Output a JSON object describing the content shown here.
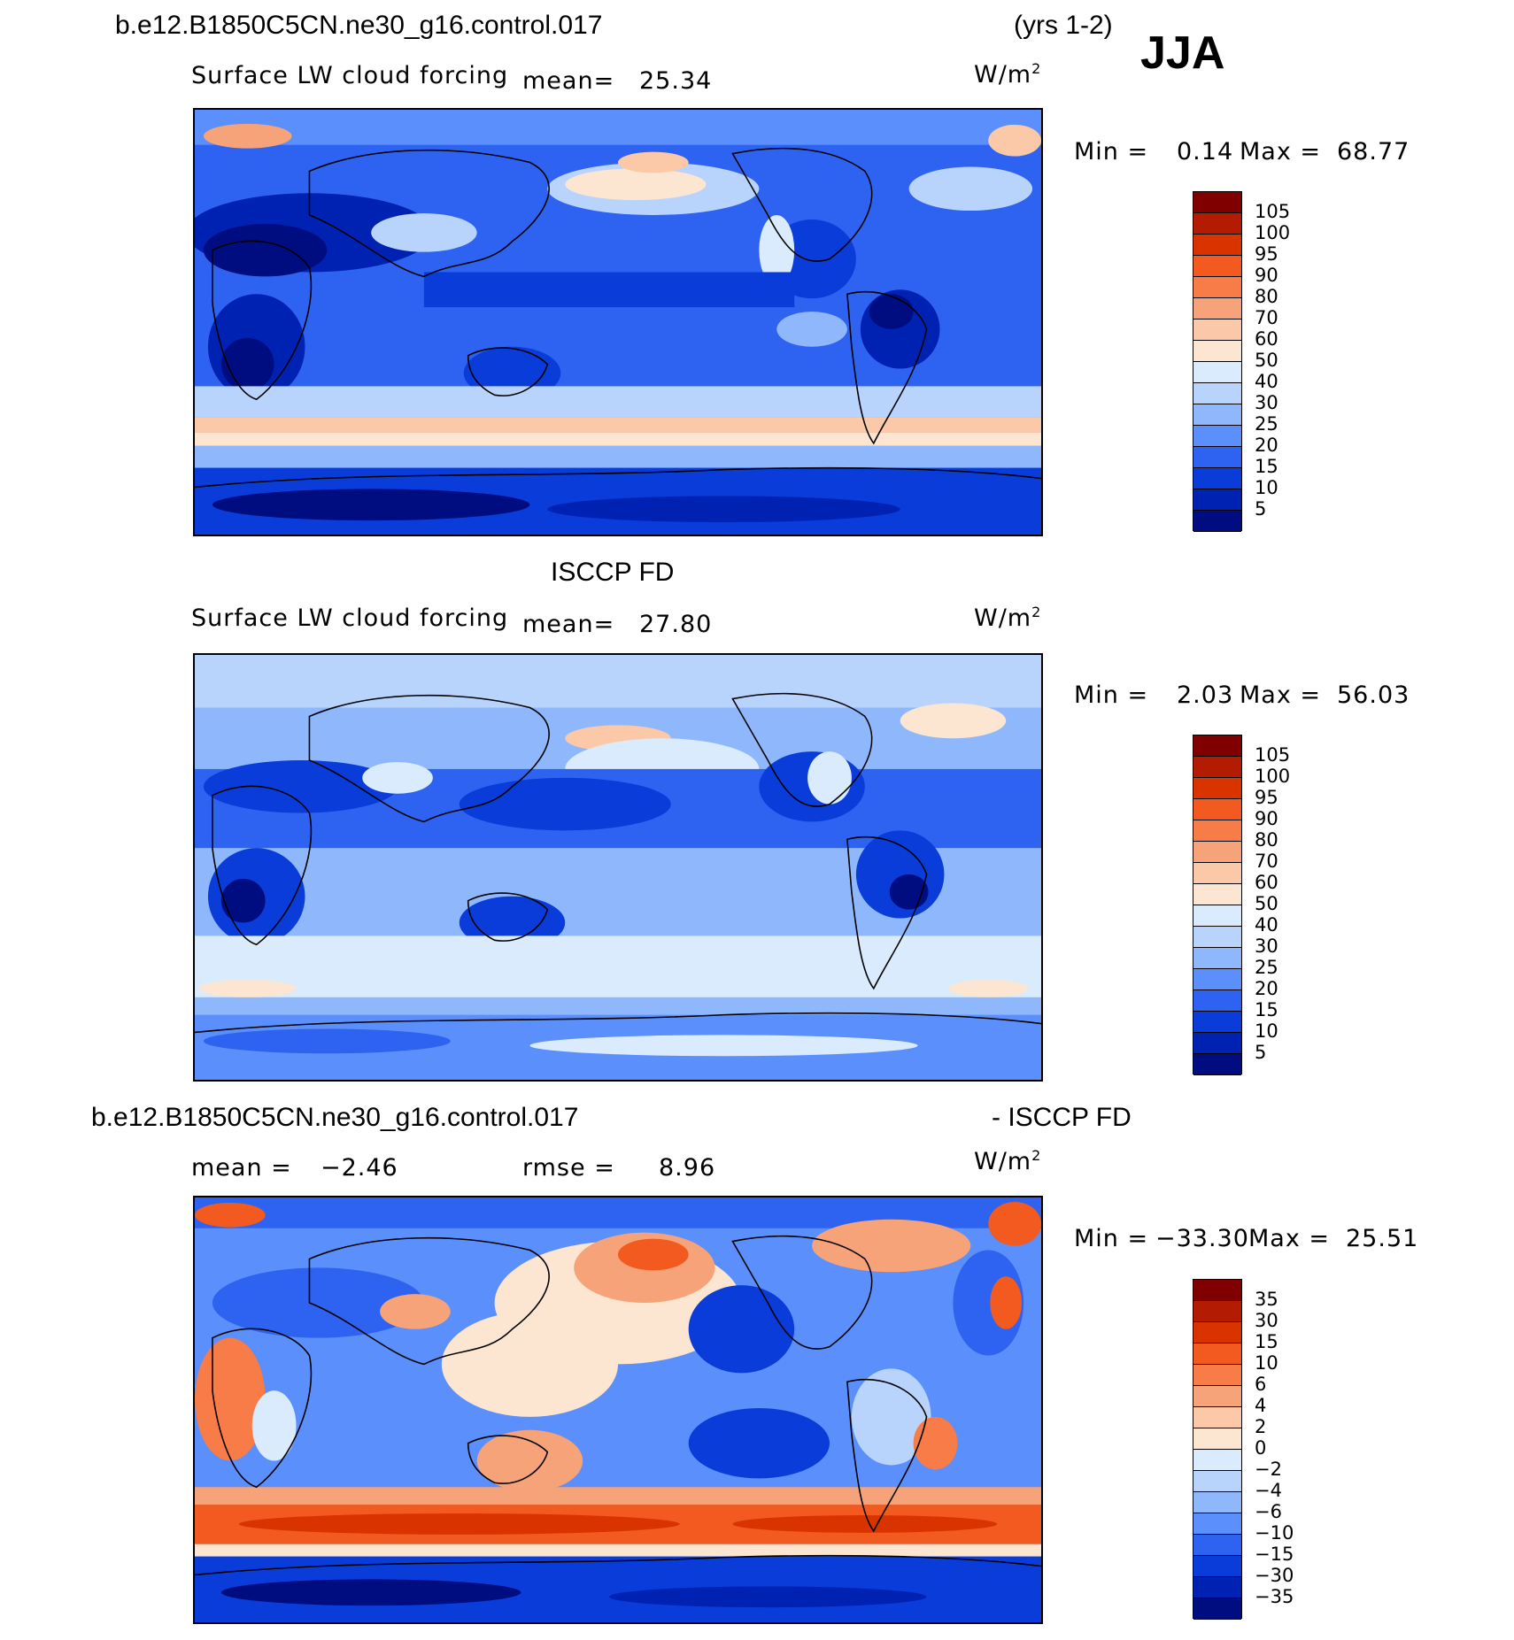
{
  "header": {
    "case_title": "b.e12.B1850C5CN.ne30_g16.control.017",
    "years": "(yrs 1-2)",
    "season": "JJA"
  },
  "panels": [
    {
      "id": "model",
      "variable": "Surface LW cloud forcing",
      "mean_label": "mean=",
      "mean_value": "25.34",
      "units": "W/m",
      "units_exp": "2",
      "min_label": "Min =",
      "min_value": "0.14",
      "max_label": "Max =",
      "max_value": "68.77"
    },
    {
      "id": "obs",
      "title": "ISCCP FD",
      "variable": "Surface LW cloud forcing",
      "mean_label": "mean=",
      "mean_value": "27.80",
      "units": "W/m",
      "units_exp": "2",
      "min_label": "Min =",
      "min_value": "2.03",
      "max_label": "Max =",
      "max_value": "56.03"
    },
    {
      "id": "diff",
      "title_left": "b.e12.B1850C5CN.ne30_g16.control.017",
      "title_right": "- ISCCP FD",
      "mean_label": "mean =",
      "mean_value": "−2.46",
      "rmse_label": "rmse =",
      "rmse_value": "8.96",
      "units": "W/m",
      "units_exp": "2",
      "min_label": "Min =",
      "min_value": "−33.30",
      "max_label": "Max =",
      "max_value": "25.51"
    }
  ],
  "colorbars": {
    "abs": {
      "labels": [
        "105",
        "100",
        "95",
        "90",
        "80",
        "70",
        "60",
        "50",
        "40",
        "30",
        "25",
        "20",
        "15",
        "10",
        "5"
      ],
      "colors": [
        "#800000",
        "#b31c00",
        "#d93300",
        "#f25a1f",
        "#f77c47",
        "#f7a37a",
        "#fcc9a8",
        "#fce6d2",
        "#d9ebfc",
        "#b8d4fc",
        "#8fb8fc",
        "#5a8ffc",
        "#2e62f0",
        "#0a3cd9",
        "#0022b3",
        "#000d80"
      ]
    },
    "diff": {
      "labels": [
        "35",
        "30",
        "15",
        "10",
        "6",
        "4",
        "2",
        "0",
        "−2",
        "−4",
        "−6",
        "−10",
        "−15",
        "−30",
        "−35"
      ],
      "colors": [
        "#800000",
        "#b31c00",
        "#d93300",
        "#f25a1f",
        "#f77c47",
        "#f7a37a",
        "#fcc9a8",
        "#fce6d2",
        "#d9ebfc",
        "#b8d4fc",
        "#8fb8fc",
        "#5a8ffc",
        "#2e62f0",
        "#0a3cd9",
        "#0022b3",
        "#000d80"
      ]
    }
  },
  "chart_data": [
    {
      "type": "heatmap",
      "title": "b.e12.B1850C5CN.ne30_g16.control.017 (yrs 1-2) JJA",
      "subtitle": "Surface LW cloud forcing",
      "units": "W/m2",
      "mean": 25.34,
      "min": 0.14,
      "max": 68.77,
      "contour_levels": [
        5,
        10,
        15,
        20,
        25,
        30,
        40,
        50,
        60,
        70,
        80,
        90,
        95,
        100,
        105
      ]
    },
    {
      "type": "heatmap",
      "title": "ISCCP FD",
      "subtitle": "Surface LW cloud forcing",
      "units": "W/m2",
      "mean": 27.8,
      "min": 2.03,
      "max": 56.03,
      "contour_levels": [
        5,
        10,
        15,
        20,
        25,
        30,
        40,
        50,
        60,
        70,
        80,
        90,
        95,
        100,
        105
      ]
    },
    {
      "type": "heatmap",
      "title": "b.e12.B1850C5CN.ne30_g16.control.017 - ISCCP FD",
      "units": "W/m2",
      "mean": -2.46,
      "rmse": 8.96,
      "min": -33.3,
      "max": 25.51,
      "contour_levels": [
        -35,
        -30,
        -15,
        -10,
        -6,
        -4,
        -2,
        0,
        2,
        4,
        6,
        10,
        15,
        30,
        35
      ]
    }
  ]
}
